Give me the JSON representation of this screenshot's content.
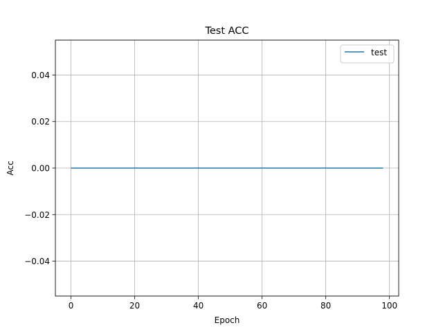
{
  "chart_data": {
    "type": "line",
    "title": "Test ACC",
    "xlabel": "Epoch",
    "ylabel": "Acc",
    "xlim": [
      -4.9,
      102.9
    ],
    "ylim": [
      -0.055,
      0.055
    ],
    "xticks": [
      0,
      20,
      40,
      60,
      80,
      100
    ],
    "xtick_labels": [
      "0",
      "20",
      "40",
      "60",
      "80",
      "100"
    ],
    "yticks": [
      -0.04,
      -0.02,
      0.0,
      0.02,
      0.04
    ],
    "ytick_labels": [
      "−0.04",
      "−0.02",
      "0.00",
      "0.02",
      "0.04"
    ],
    "grid": true,
    "legend": {
      "position": "upper right"
    },
    "series": [
      {
        "name": "test",
        "color": "#1f77b4",
        "x": [
          0,
          98
        ],
        "y": [
          0.0,
          0.0
        ]
      }
    ]
  }
}
